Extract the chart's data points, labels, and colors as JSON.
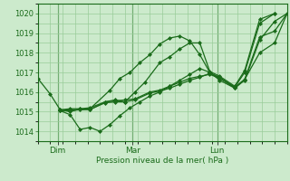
{
  "bg_color": "#cceacc",
  "grid_color": "#99cc99",
  "line_color": "#1a6b1a",
  "marker_color": "#1a6b1a",
  "xlabel": "Pression niveau de la mer( hPa )",
  "ylim": [
    1013.5,
    1020.5
  ],
  "yticks": [
    1014,
    1015,
    1016,
    1017,
    1018,
    1019,
    1020
  ],
  "xtick_labels": [
    "Dim",
    "Mar",
    "Lun"
  ],
  "xtick_positions": [
    8,
    38,
    72
  ],
  "xlim": [
    0,
    100
  ],
  "series": [
    [
      [
        0,
        1016.7
      ],
      [
        5,
        1015.9
      ],
      [
        9,
        1015.1
      ],
      [
        13,
        1015.0
      ],
      [
        17,
        1015.15
      ],
      [
        21,
        1015.1
      ],
      [
        27,
        1015.5
      ],
      [
        31,
        1015.6
      ],
      [
        35,
        1015.5
      ],
      [
        39,
        1016.0
      ],
      [
        43,
        1016.5
      ],
      [
        49,
        1017.5
      ],
      [
        53,
        1017.8
      ],
      [
        57,
        1018.2
      ],
      [
        61,
        1018.5
      ],
      [
        65,
        1018.5
      ],
      [
        69,
        1017.05
      ],
      [
        73,
        1016.8
      ],
      [
        79,
        1016.3
      ],
      [
        83,
        1017.1
      ],
      [
        89,
        1019.7
      ],
      [
        95,
        1020.0
      ]
    ],
    [
      [
        9,
        1015.05
      ],
      [
        13,
        1014.85
      ],
      [
        17,
        1014.1
      ],
      [
        21,
        1014.2
      ],
      [
        25,
        1014.0
      ],
      [
        29,
        1014.35
      ],
      [
        33,
        1014.8
      ],
      [
        37,
        1015.2
      ],
      [
        41,
        1015.5
      ],
      [
        45,
        1015.8
      ],
      [
        49,
        1016.0
      ],
      [
        53,
        1016.3
      ],
      [
        57,
        1016.6
      ],
      [
        61,
        1016.9
      ],
      [
        65,
        1017.2
      ],
      [
        69,
        1017.0
      ],
      [
        73,
        1016.6
      ],
      [
        79,
        1016.2
      ],
      [
        83,
        1016.65
      ],
      [
        89,
        1018.0
      ],
      [
        95,
        1018.5
      ],
      [
        100,
        1020.0
      ]
    ],
    [
      [
        9,
        1015.1
      ],
      [
        13,
        1015.15
      ],
      [
        17,
        1015.15
      ],
      [
        21,
        1015.2
      ],
      [
        27,
        1015.5
      ],
      [
        31,
        1015.55
      ],
      [
        35,
        1015.6
      ],
      [
        39,
        1015.65
      ],
      [
        45,
        1016.0
      ],
      [
        49,
        1016.1
      ],
      [
        53,
        1016.3
      ],
      [
        57,
        1016.5
      ],
      [
        61,
        1016.7
      ],
      [
        65,
        1016.8
      ],
      [
        69,
        1016.9
      ],
      [
        73,
        1016.7
      ],
      [
        79,
        1016.25
      ],
      [
        83,
        1016.65
      ],
      [
        89,
        1018.8
      ],
      [
        95,
        1019.1
      ],
      [
        100,
        1020.0
      ]
    ],
    [
      [
        9,
        1015.05
      ],
      [
        13,
        1015.1
      ],
      [
        17,
        1015.1
      ],
      [
        21,
        1015.12
      ],
      [
        27,
        1015.45
      ],
      [
        31,
        1015.5
      ],
      [
        35,
        1015.5
      ],
      [
        39,
        1015.6
      ],
      [
        45,
        1015.95
      ],
      [
        49,
        1016.05
      ],
      [
        53,
        1016.2
      ],
      [
        57,
        1016.4
      ],
      [
        61,
        1016.6
      ],
      [
        65,
        1016.75
      ],
      [
        69,
        1016.95
      ],
      [
        73,
        1016.75
      ],
      [
        79,
        1016.2
      ],
      [
        83,
        1016.6
      ],
      [
        89,
        1018.65
      ],
      [
        95,
        1019.6
      ],
      [
        100,
        1020.0
      ]
    ],
    [
      [
        9,
        1015.05
      ],
      [
        13,
        1015.05
      ],
      [
        21,
        1015.15
      ],
      [
        29,
        1016.1
      ],
      [
        33,
        1016.7
      ],
      [
        37,
        1017.0
      ],
      [
        41,
        1017.5
      ],
      [
        45,
        1017.9
      ],
      [
        49,
        1018.45
      ],
      [
        53,
        1018.75
      ],
      [
        57,
        1018.85
      ],
      [
        61,
        1018.6
      ],
      [
        65,
        1017.9
      ],
      [
        69,
        1017.0
      ],
      [
        73,
        1016.7
      ],
      [
        79,
        1016.25
      ],
      [
        83,
        1017.0
      ],
      [
        89,
        1019.5
      ],
      [
        95,
        1020.0
      ]
    ]
  ]
}
